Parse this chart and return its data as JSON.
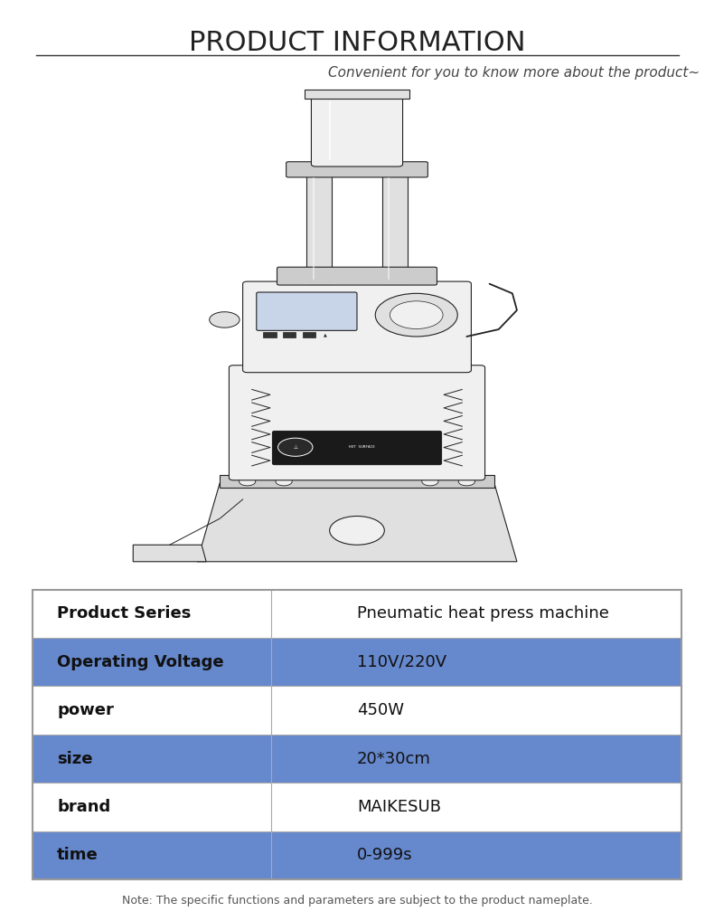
{
  "title": "PRODUCT INFORMATION",
  "subtitle": "Convenient for you to know more about the product~",
  "bg_color": "#ffffff",
  "title_color": "#222222",
  "subtitle_color": "#444444",
  "table_rows": [
    {
      "label": "Product Series",
      "value": "Pneumatic heat press machine",
      "highlight": false
    },
    {
      "label": "Operating Voltage",
      "value": "110V/220V",
      "highlight": true
    },
    {
      "label": "power",
      "value": "450W",
      "highlight": false
    },
    {
      "label": "size",
      "value": "20*30cm",
      "highlight": true
    },
    {
      "label": "brand",
      "value": "MAIKESUB",
      "highlight": false
    },
    {
      "label": "time",
      "value": "0-999s",
      "highlight": true
    }
  ],
  "table_highlight_color": "#6688cc",
  "table_normal_color": "#ffffff",
  "table_border_color": "#aaaaaa",
  "note_text": "Note: The specific functions and parameters are subject to the product nameplate.",
  "note_color": "#555555",
  "title_fontsize": 22,
  "subtitle_fontsize": 11,
  "table_fontsize": 13,
  "note_fontsize": 9,
  "line_color": "#333333",
  "ec": "#222222",
  "fc_light": "#f0f0f0",
  "fc_mid": "#e0e0e0",
  "fc_dark": "#cccccc"
}
